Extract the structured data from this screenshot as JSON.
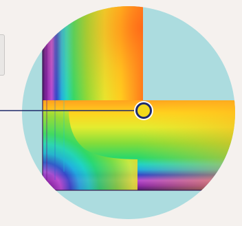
{
  "colors": {
    "page_background": "#f5f1ee",
    "lens_background": "#acdcdf",
    "pointer_line": "#1e2a6a",
    "marker_ring": "#1e2a6a",
    "marker_fill": "#f2d81a",
    "marker_halo": "#ffffff",
    "thermal_scale": [
      "#4a1a6a",
      "#8e2aa8",
      "#b94ed0",
      "#3548c8",
      "#21aee0",
      "#1fd4c4",
      "#2bd86a",
      "#82dc3a",
      "#e4ec30",
      "#ffd21e",
      "#ff9a1e",
      "#ff6a18"
    ]
  },
  "icons": {
    "marker": "temperature-probe-icon",
    "edge_tab": "side-panel-handle-icon"
  }
}
